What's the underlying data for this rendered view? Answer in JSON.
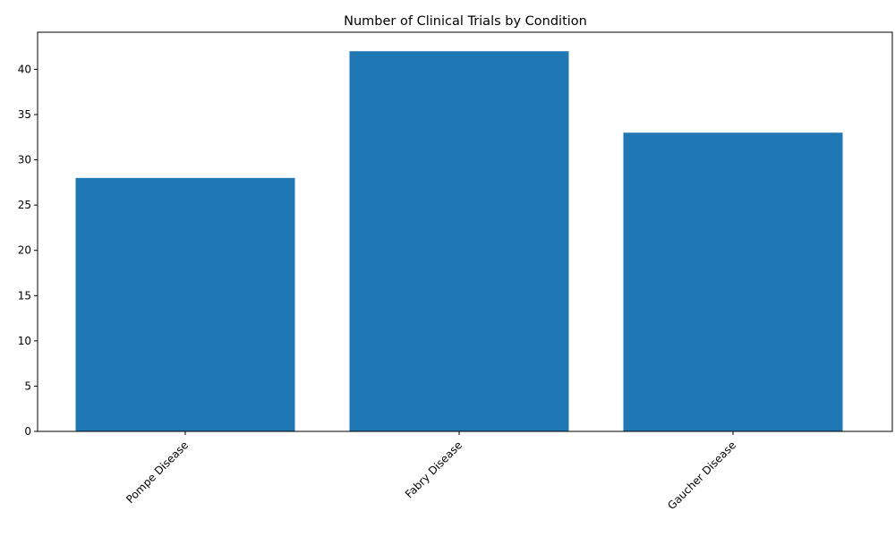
{
  "chart_data": {
    "type": "bar",
    "title": "Number of Clinical Trials by Condition",
    "categories": [
      "Pompe Disease",
      "Fabry Disease",
      "Gaucher Disease"
    ],
    "values": [
      28,
      42,
      33
    ],
    "xlabel": "",
    "ylabel": "",
    "ylim": [
      0,
      44.1
    ],
    "yticks": [
      0,
      5,
      10,
      15,
      20,
      25,
      30,
      35,
      40
    ],
    "grid": false,
    "x_tick_rotation": 45,
    "colors": {
      "bar": "#1f77b4"
    }
  }
}
